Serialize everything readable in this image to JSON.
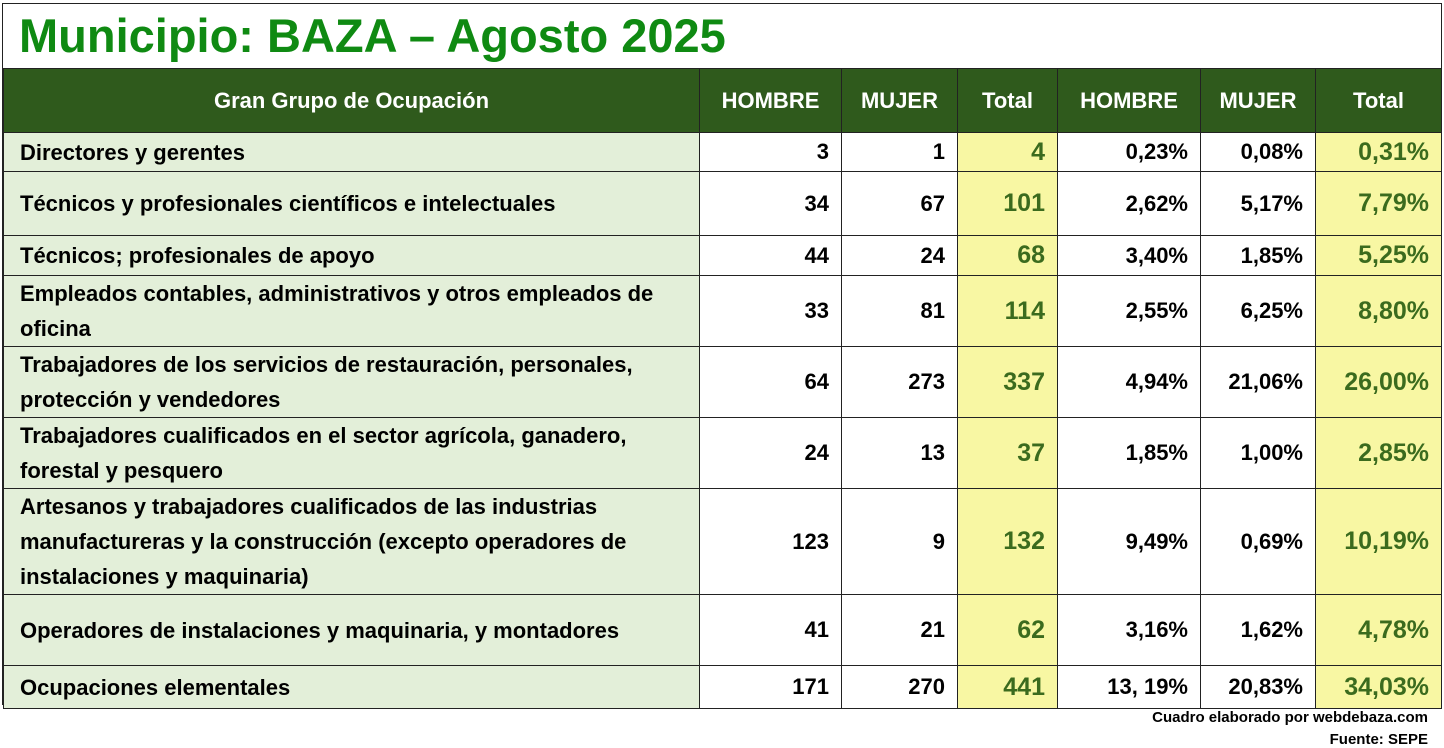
{
  "title": "Municipio: BAZA – Agosto 2025",
  "headers": [
    "Gran Grupo de Ocupación",
    "HOMBRE",
    "MUJER",
    "Total",
    "HOMBRE",
    "MUJER",
    "Total"
  ],
  "rows": [
    {
      "label": "Directores y gerentes",
      "hombre": "3",
      "mujer": "1",
      "total": "4",
      "p_hombre": "0,23%",
      "p_mujer": "0,08%",
      "p_total": "0,31%"
    },
    {
      "label": "Técnicos y profesionales científicos e intelectuales",
      "hombre": "34",
      "mujer": "67",
      "total": "101",
      "p_hombre": "2,62%",
      "p_mujer": "5,17%",
      "p_total": "7,79%"
    },
    {
      "label": "Técnicos; profesionales de apoyo",
      "hombre": "44",
      "mujer": "24",
      "total": "68",
      "p_hombre": "3,40%",
      "p_mujer": "1,85%",
      "p_total": "5,25%"
    },
    {
      "label": "Empleados contables, administrativos y otros empleados de oficina",
      "hombre": "33",
      "mujer": "81",
      "total": "114",
      "p_hombre": "2,55%",
      "p_mujer": "6,25%",
      "p_total": "8,80%"
    },
    {
      "label": "Trabajadores de los servicios de restauración, personales, protección y vendedores",
      "hombre": "64",
      "mujer": "273",
      "total": "337",
      "p_hombre": "4,94%",
      "p_mujer": "21,06%",
      "p_total": "26,00%"
    },
    {
      "label": "Trabajadores cualificados en el sector agrícola, ganadero, forestal y pesquero",
      "hombre": "24",
      "mujer": "13",
      "total": "37",
      "p_hombre": "1,85%",
      "p_mujer": "1,00%",
      "p_total": "2,85%"
    },
    {
      "label": "Artesanos y trabajadores cualificados de las industrias manufactureras y la construcción (excepto operadores de instalaciones y maquinaria)",
      "hombre": "123",
      "mujer": "9",
      "total": "132",
      "p_hombre": "9,49%",
      "p_mujer": "0,69%",
      "p_total": "10,19%"
    },
    {
      "label": "Operadores de instalaciones y maquinaria, y montadores",
      "hombre": "41",
      "mujer": "21",
      "total": "62",
      "p_hombre": "3,16%",
      "p_mujer": "1,62%",
      "p_total": "4,78%"
    },
    {
      "label": "Ocupaciones elementales",
      "hombre": "171",
      "mujer": "270",
      "total": "441",
      "p_hombre": "13, 19%",
      "p_mujer": "20,83%",
      "p_total": "34,03%"
    }
  ],
  "footer": {
    "credit": "Cuadro elaborado por webdebaza.com",
    "source": "Fuente: SEPE"
  },
  "colors": {
    "title": "#0f8a12",
    "header_bg": "#2f5a1c",
    "label_bg": "#e3efd9",
    "total_bg": "#f8f7a3",
    "total_text": "#3b6b1e"
  }
}
